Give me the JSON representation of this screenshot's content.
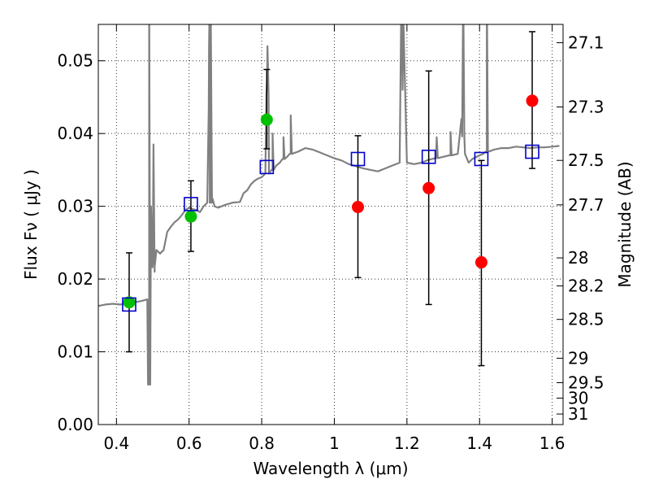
{
  "chart_data": {
    "type": "scatter",
    "xlabel": "Wavelength  λ (μm)",
    "ylabel": "Flux  Fν  ( μJy )",
    "ylabel_right": "Magnitude (AB)",
    "xlim": [
      0.35,
      1.63
    ],
    "ylim": [
      0.0,
      0.055
    ],
    "x_ticks": [
      "0.4",
      "0.6",
      "0.8",
      "1",
      "1.2",
      "1.4",
      "1.6"
    ],
    "x_tick_values": [
      0.4,
      0.6,
      0.8,
      1.0,
      1.2,
      1.4,
      1.6
    ],
    "y_ticks": [
      "0.00",
      "0.01",
      "0.02",
      "0.03",
      "0.04",
      "0.05"
    ],
    "y_tick_values": [
      0.0,
      0.01,
      0.02,
      0.03,
      0.04,
      0.05
    ],
    "right_ticks": [
      {
        "label": "27.1",
        "mag": 27.1
      },
      {
        "label": "27.3",
        "mag": 27.3
      },
      {
        "label": "27.5",
        "mag": 27.5
      },
      {
        "label": "27.7",
        "mag": 27.7
      },
      {
        "label": "28",
        "mag": 28.0
      },
      {
        "label": "28.2",
        "mag": 28.2
      },
      {
        "label": "28.5",
        "mag": 28.5
      },
      {
        "label": "29",
        "mag": 29.0
      },
      {
        "label": "29.5",
        "mag": 29.5
      },
      {
        "label": "30",
        "mag": 30.0
      },
      {
        "label": "31",
        "mag": 31.0
      }
    ],
    "grid": true,
    "colors": {
      "spectrum": "#808080",
      "detection": "#00c000",
      "upper_limit": "#ff0000",
      "model": "#0000cc",
      "errorbar": "#000000"
    },
    "spectrum": {
      "x": [
        0.35,
        0.37,
        0.39,
        0.41,
        0.43,
        0.45,
        0.47,
        0.485,
        0.49,
        0.495,
        0.5,
        0.505,
        0.51,
        0.52,
        0.53,
        0.54,
        0.55,
        0.56,
        0.57,
        0.58,
        0.59,
        0.6,
        0.61,
        0.62,
        0.63,
        0.64,
        0.65,
        0.655,
        0.66,
        0.665,
        0.67,
        0.68,
        0.7,
        0.72,
        0.74,
        0.75,
        0.76,
        0.77,
        0.78,
        0.79,
        0.8,
        0.81,
        0.815,
        0.82,
        0.83,
        0.84,
        0.85,
        0.86,
        0.87,
        0.88,
        0.9,
        0.92,
        0.94,
        0.96,
        0.98,
        1.0,
        1.02,
        1.04,
        1.06,
        1.08,
        1.1,
        1.12,
        1.14,
        1.16,
        1.18,
        1.19,
        1.2,
        1.22,
        1.24,
        1.26,
        1.28,
        1.3,
        1.32,
        1.34,
        1.35,
        1.36,
        1.37,
        1.38,
        1.4,
        1.41,
        1.42,
        1.43,
        1.44,
        1.46,
        1.48,
        1.5,
        1.52,
        1.54,
        1.56,
        1.58,
        1.6,
        1.62
      ],
      "y": [
        0.0163,
        0.0165,
        0.0166,
        0.0165,
        0.0167,
        0.0168,
        0.017,
        0.0172,
        0.0055,
        0.03,
        0.022,
        0.021,
        0.024,
        0.0235,
        0.024,
        0.0265,
        0.0272,
        0.0278,
        0.0282,
        0.0288,
        0.0295,
        0.0298,
        0.0296,
        0.0295,
        0.0292,
        0.03,
        0.0305,
        0.052,
        0.0305,
        0.031,
        0.03,
        0.0298,
        0.0302,
        0.0305,
        0.0306,
        0.0318,
        0.0322,
        0.033,
        0.0335,
        0.0338,
        0.034,
        0.0345,
        0.048,
        0.0345,
        0.035,
        0.0356,
        0.036,
        0.0365,
        0.0368,
        0.0372,
        0.0375,
        0.038,
        0.0378,
        0.0374,
        0.037,
        0.0366,
        0.0363,
        0.0358,
        0.0355,
        0.0352,
        0.035,
        0.0348,
        0.0352,
        0.0356,
        0.036,
        0.056,
        0.036,
        0.0358,
        0.036,
        0.0364,
        0.0366,
        0.0368,
        0.037,
        0.0372,
        0.042,
        0.0372,
        0.036,
        0.0365,
        0.037,
        0.0372,
        0.0375,
        0.0376,
        0.0378,
        0.038,
        0.038,
        0.0382,
        0.0381,
        0.038,
        0.0381,
        0.0381,
        0.0382,
        0.0383
      ],
      "emission_lines": [
        [
          0.49,
          0.06
        ],
        [
          0.502,
          0.0385
        ],
        [
          0.657,
          0.06
        ],
        [
          0.66,
          0.055
        ],
        [
          0.816,
          0.052
        ],
        [
          0.83,
          0.04
        ],
        [
          0.86,
          0.0395
        ],
        [
          0.88,
          0.0425
        ],
        [
          1.185,
          0.06
        ],
        [
          1.282,
          0.0395
        ],
        [
          1.32,
          0.0402
        ],
        [
          1.355,
          0.06
        ],
        [
          1.42,
          0.06
        ]
      ]
    },
    "series": [
      {
        "marker": "circle",
        "color": "#00c000",
        "points": [
          {
            "x": 0.435,
            "y": 0.0168
          },
          {
            "x": 0.605,
            "y": 0.0286
          },
          {
            "x": 0.814,
            "y": 0.0419
          }
        ]
      },
      {
        "marker": "circle",
        "color": "#ff0000",
        "points": [
          {
            "x": 1.065,
            "y": 0.0299
          },
          {
            "x": 1.26,
            "y": 0.0325
          },
          {
            "x": 1.405,
            "y": 0.0223
          },
          {
            "x": 1.545,
            "y": 0.0445
          }
        ]
      },
      {
        "marker": "square-open",
        "color": "#0000cc",
        "points": [
          {
            "x": 0.435,
            "y": 0.0165
          },
          {
            "x": 0.605,
            "y": 0.0303
          },
          {
            "x": 0.814,
            "y": 0.0354
          },
          {
            "x": 1.065,
            "y": 0.0365
          },
          {
            "x": 1.26,
            "y": 0.0368
          },
          {
            "x": 1.405,
            "y": 0.0365
          },
          {
            "x": 1.545,
            "y": 0.0375
          }
        ]
      }
    ],
    "errorbars": [
      {
        "x": 0.435,
        "low": 0.01,
        "high": 0.0236
      },
      {
        "x": 0.605,
        "low": 0.0238,
        "high": 0.0335
      },
      {
        "x": 0.814,
        "low": 0.0379,
        "high": 0.0488
      },
      {
        "x": 1.065,
        "low": 0.0202,
        "high": 0.0397
      },
      {
        "x": 1.26,
        "low": 0.0165,
        "high": 0.0486
      },
      {
        "x": 1.405,
        "low": 0.0081,
        "high": 0.0363
      },
      {
        "x": 1.545,
        "low": 0.0352,
        "high": 0.054
      }
    ]
  }
}
